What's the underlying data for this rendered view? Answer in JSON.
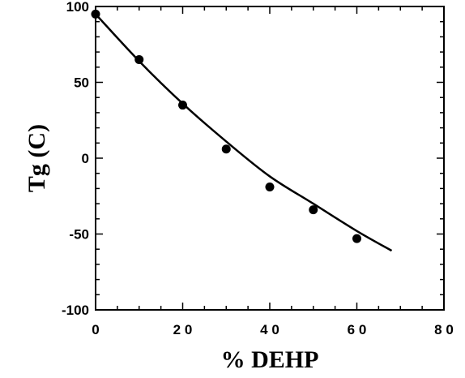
{
  "chart_data": {
    "type": "scatter",
    "title": "",
    "xlabel": "% DEHP",
    "ylabel": "Tg (C)",
    "xlim": [
      0,
      80
    ],
    "ylim": [
      -100,
      100
    ],
    "xticks": [
      0,
      20,
      40,
      60,
      80
    ],
    "xtick_labels": [
      "0",
      "2 0",
      "4 0",
      "6 0",
      "8 0"
    ],
    "yticks": [
      -100,
      -50,
      0,
      50,
      100
    ],
    "ytick_labels": [
      "-100",
      "-50",
      "0",
      "50",
      "100"
    ],
    "grid": false,
    "series": [
      {
        "kind": "points",
        "x": [
          0,
          10,
          20,
          30,
          40,
          50,
          60
        ],
        "y": [
          95,
          65,
          35,
          6,
          -19,
          -34,
          -53
        ]
      },
      {
        "kind": "fit-line",
        "x": [
          0,
          10,
          20,
          30,
          40,
          50,
          60,
          68
        ],
        "y": [
          95,
          64,
          36,
          11,
          -12,
          -30,
          -48,
          -61
        ]
      }
    ]
  }
}
